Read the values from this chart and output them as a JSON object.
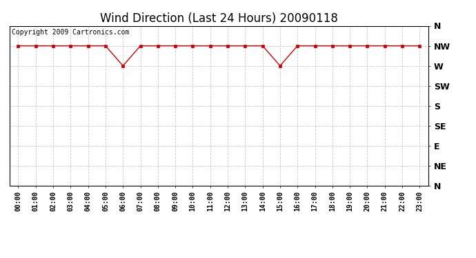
{
  "title": "Wind Direction (Last 24 Hours) 20090118",
  "copyright_text": "Copyright 2009 Cartronics.com",
  "line_color": "#cc0000",
  "marker": "s",
  "marker_size": 3,
  "background_color": "#ffffff",
  "grid_color": "#bbbbbb",
  "y_labels_top_to_bottom": [
    "N",
    "NW",
    "W",
    "SW",
    "S",
    "SE",
    "E",
    "NE",
    "N"
  ],
  "x_hours": [
    0,
    1,
    2,
    3,
    4,
    5,
    6,
    7,
    8,
    9,
    10,
    11,
    12,
    13,
    14,
    15,
    16,
    17,
    18,
    19,
    20,
    21,
    22,
    23
  ],
  "wind_data": [
    7,
    7,
    7,
    7,
    7,
    7,
    6,
    7,
    7,
    7,
    7,
    7,
    7,
    7,
    7,
    6,
    7,
    7,
    7,
    7,
    7,
    7,
    7,
    7
  ],
  "xlim": [
    -0.5,
    23.5
  ],
  "ylim": [
    0,
    8
  ],
  "title_fontsize": 12,
  "tick_fontsize": 7,
  "copyright_fontsize": 7,
  "ytick_fontsize": 9
}
